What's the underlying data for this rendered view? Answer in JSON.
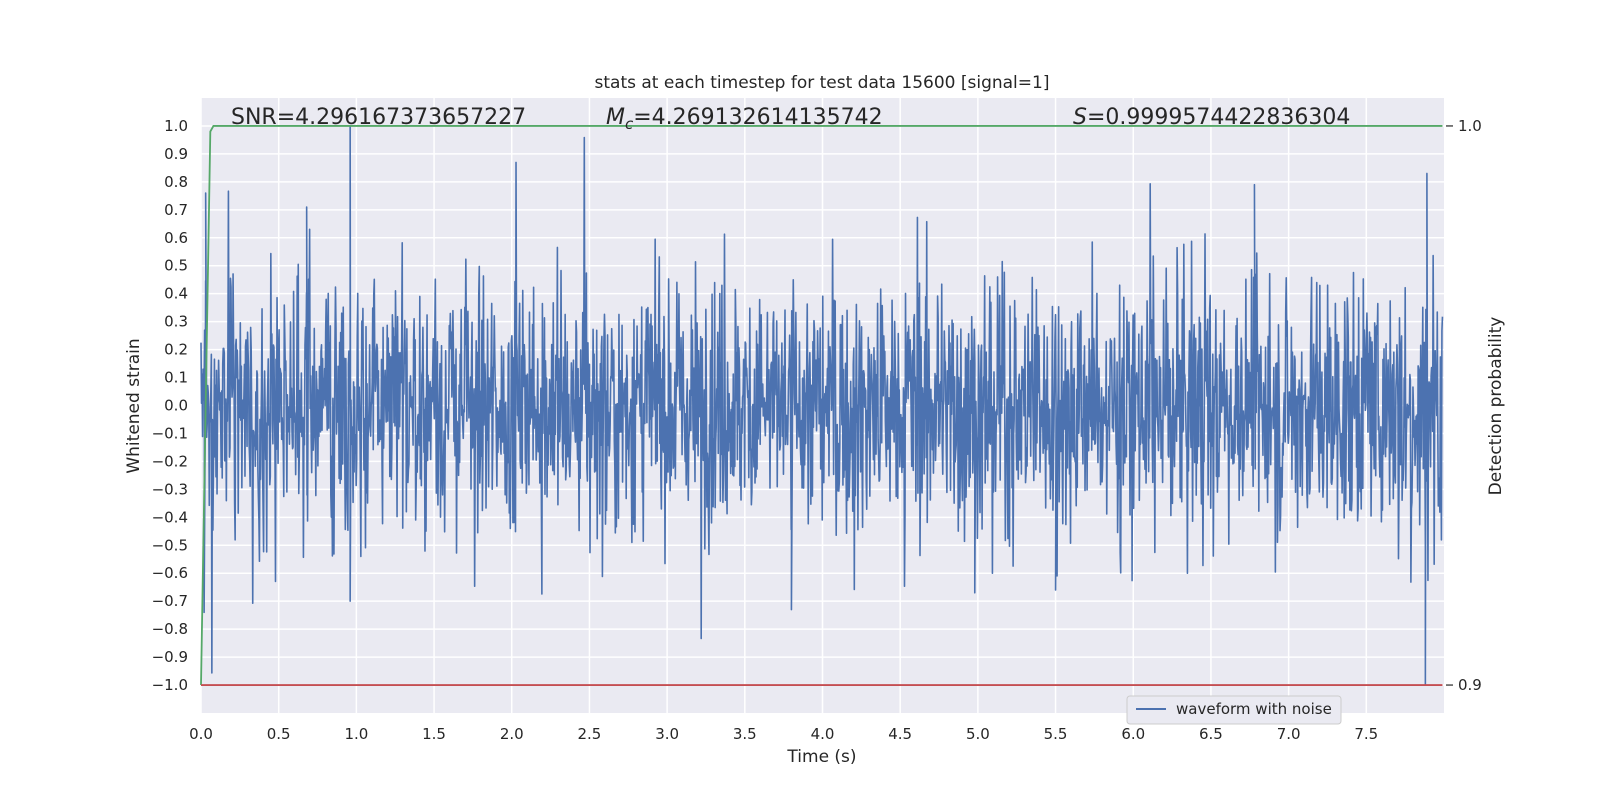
{
  "chart_data": {
    "type": "line",
    "title": "stats at each timestep for test data 15600 [signal=1]",
    "xlabel": "Time (s)",
    "ylabel": "Whitened strain",
    "y2label": "Detection probability",
    "xlim": [
      0.0,
      8.0
    ],
    "ylim": [
      -1.1,
      1.1
    ],
    "y2lim": [
      0.9,
      1.0
    ],
    "x_ticks": [
      "0.0",
      "0.5",
      "1.0",
      "1.5",
      "2.0",
      "2.5",
      "3.0",
      "3.5",
      "4.0",
      "4.5",
      "5.0",
      "5.5",
      "6.0",
      "6.5",
      "7.0",
      "7.5"
    ],
    "y_ticks": [
      "1.0",
      "0.9",
      "0.8",
      "0.7",
      "0.6",
      "0.5",
      "0.4",
      "0.3",
      "0.2",
      "0.1",
      "0.0",
      "−0.1",
      "−0.2",
      "−0.3",
      "−0.4",
      "−0.5",
      "−0.6",
      "−0.7",
      "−0.8",
      "−0.9",
      "−1.0"
    ],
    "y2_ticks": [
      "1.0",
      "0.9"
    ],
    "annotations": {
      "snr": "SNR=4.296167373657227",
      "mc_symbol": "M",
      "mc_sub": "c",
      "mc_value": "=4.269132614135742",
      "s_symbol": "S",
      "s_value": "=0.9999574422836304"
    },
    "series": [
      {
        "name": "waveform with noise",
        "color": "#4c72b0",
        "axis": "left",
        "x_start": 0.0,
        "x_end": 7.99,
        "noise_amplitude": 0.3,
        "max": 1.0,
        "min": -1.0,
        "peaks": [
          {
            "x": 0.96,
            "y": 1.0
          },
          {
            "x": 0.96,
            "y": -0.7
          },
          {
            "x": 0.02,
            "y": -0.74
          },
          {
            "x": 0.03,
            "y": 0.76
          },
          {
            "x": 0.68,
            "y": 0.71
          },
          {
            "x": 3.8,
            "y": -0.73
          },
          {
            "x": 6.78,
            "y": 0.79
          },
          {
            "x": 7.89,
            "y": 0.83
          },
          {
            "x": 7.88,
            "y": -1.0
          },
          {
            "x": 4.98,
            "y": -0.67
          },
          {
            "x": 5.5,
            "y": -0.66
          }
        ]
      },
      {
        "color": "#55a868",
        "axis": "right",
        "x": [
          0.0,
          0.03,
          0.06,
          0.08,
          7.99
        ],
        "values": [
          0.9,
          0.95,
          0.999,
          1.0,
          1.0
        ]
      },
      {
        "color": "#c44e52",
        "axis": "left",
        "x": [
          0.0,
          7.99
        ],
        "values": [
          -1.0,
          -1.0
        ]
      }
    ],
    "legend": {
      "position": "lower-right",
      "entries": [
        "waveform with noise"
      ]
    },
    "grid": true,
    "background": "#eaeaf2"
  }
}
